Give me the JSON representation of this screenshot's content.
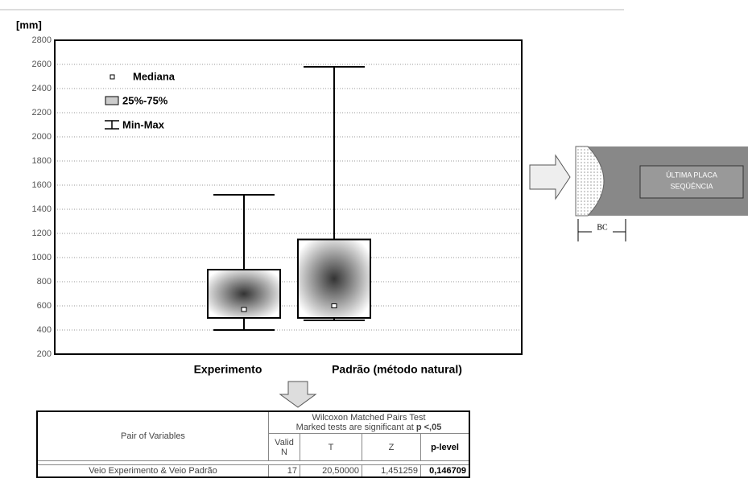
{
  "chart_data": {
    "type": "box",
    "y_label": "[mm]",
    "categories": [
      "Experimento",
      "Padrão (método natural)"
    ],
    "min": [
      400,
      480
    ],
    "q1": [
      500,
      500
    ],
    "median": [
      570,
      600
    ],
    "q3": [
      900,
      1150
    ],
    "max": [
      1520,
      2580
    ],
    "legend_labels": [
      "Mediana",
      "25%-75%",
      "Min-Max"
    ],
    "ylim": [
      200,
      2800
    ],
    "yticks": [
      200,
      400,
      600,
      800,
      1000,
      1200,
      1400,
      1600,
      1800,
      2000,
      2200,
      2400,
      2600,
      2800
    ],
    "grid": true
  },
  "diagram": {
    "label_lines": [
      "ÚLTIMA PLACA",
      "SEQÜÊNCIA"
    ],
    "dimension": "BC"
  },
  "table": {
    "title": "Wilcoxon Matched Pairs Test",
    "note": "Marked tests are significant at ",
    "note_emphasis": "p <,05",
    "columns": [
      "Pair of Variables",
      "Valid N",
      "T",
      "Z",
      "p-level"
    ],
    "rows": [
      [
        "Veio Experimento & Veio Padrão",
        17,
        "20,50000",
        "1,451259",
        "0,146709"
      ]
    ]
  }
}
